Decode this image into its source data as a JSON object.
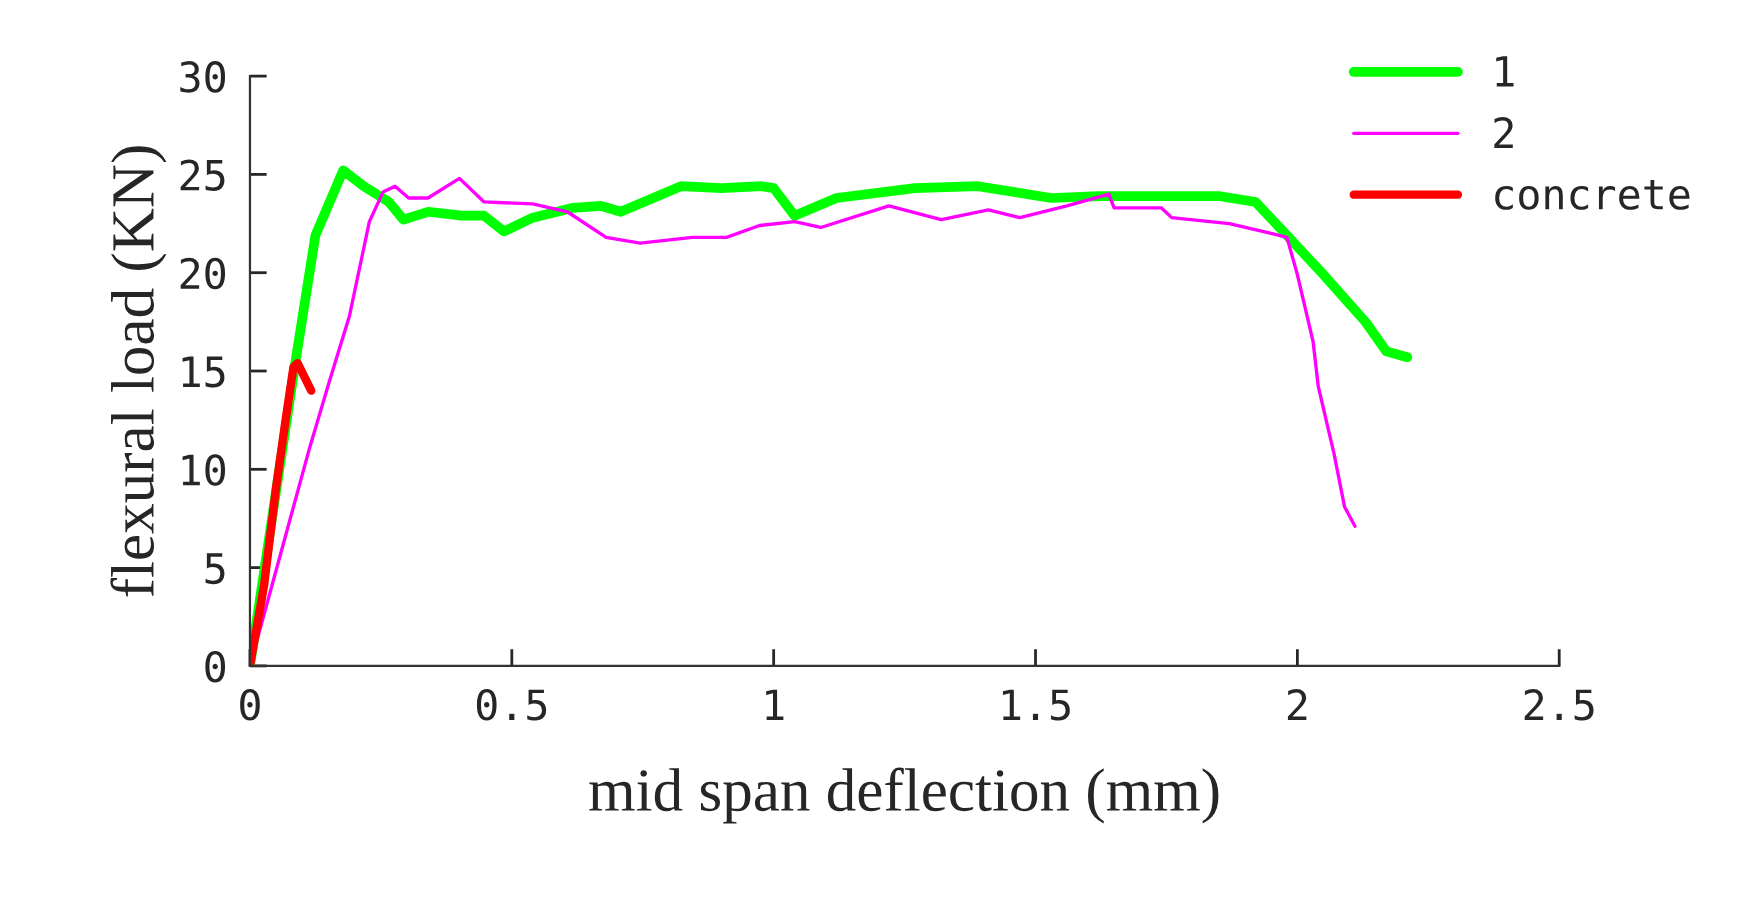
{
  "chart_data": {
    "type": "line",
    "xlabel": "mid span deflection (mm)",
    "ylabel": "flexural load (KN)",
    "xlim": [
      0,
      2.5
    ],
    "xticks": [
      0,
      0.5,
      1,
      1.5,
      2,
      2.5
    ],
    "ylim": [
      0,
      30
    ],
    "yticks": [
      0,
      5,
      10,
      15,
      20,
      25,
      30
    ],
    "grid": false,
    "legend": "top right",
    "marker": "none",
    "line_style": "solid",
    "series": [
      {
        "name": "1",
        "color": "#00ff00",
        "x": [
          0,
          0.087,
          0.125,
          0.178,
          0.217,
          0.265,
          0.293,
          0.34,
          0.405,
          0.447,
          0.485,
          0.54,
          0.617,
          0.67,
          0.708,
          0.77,
          0.823,
          0.9,
          0.977,
          1.0,
          1.04,
          1.12,
          1.27,
          1.39,
          1.53,
          1.62,
          1.85,
          1.92,
          1.98,
          2.05,
          2.13,
          2.17,
          2.21
        ],
        "values": [
          0,
          15.5,
          21.9,
          25.2,
          24.4,
          23.6,
          22.7,
          23.1,
          22.9,
          22.9,
          22.1,
          22.8,
          23.3,
          23.4,
          23.1,
          23.8,
          24.4,
          24.3,
          24.4,
          24.3,
          22.9,
          23.8,
          24.3,
          24.4,
          23.8,
          23.9,
          23.9,
          23.6,
          21.9,
          19.9,
          17.5,
          16.0,
          15.7
        ]
      },
      {
        "name": "2",
        "color": "#ff00ff",
        "x": [
          0,
          0.114,
          0.152,
          0.19,
          0.228,
          0.254,
          0.277,
          0.303,
          0.34,
          0.4,
          0.447,
          0.54,
          0.606,
          0.68,
          0.745,
          0.845,
          0.91,
          0.973,
          1.04,
          1.09,
          1.22,
          1.32,
          1.41,
          1.47,
          1.56,
          1.64,
          1.65,
          1.74,
          1.76,
          1.87,
          1.95,
          1.98,
          2.0,
          2.03,
          2.04,
          2.07,
          2.09,
          2.11
        ],
        "values": [
          0,
          11.1,
          14.5,
          17.8,
          22.6,
          24.1,
          24.4,
          23.8,
          23.8,
          24.8,
          23.6,
          23.5,
          23.1,
          21.8,
          21.5,
          21.8,
          21.8,
          22.4,
          22.6,
          22.3,
          23.4,
          22.7,
          23.2,
          22.8,
          23.4,
          24.0,
          23.3,
          23.3,
          22.8,
          22.5,
          22.0,
          21.8,
          19.9,
          16.5,
          14.2,
          10.8,
          8.1,
          7.1
        ]
      },
      {
        "name": "concrete",
        "color": "#ff0000",
        "x": [
          0,
          0.027,
          0.05,
          0.068,
          0.083,
          0.091,
          0.117
        ],
        "values": [
          0,
          4.1,
          9.1,
          12.5,
          15.2,
          15.4,
          14.0
        ]
      }
    ]
  }
}
